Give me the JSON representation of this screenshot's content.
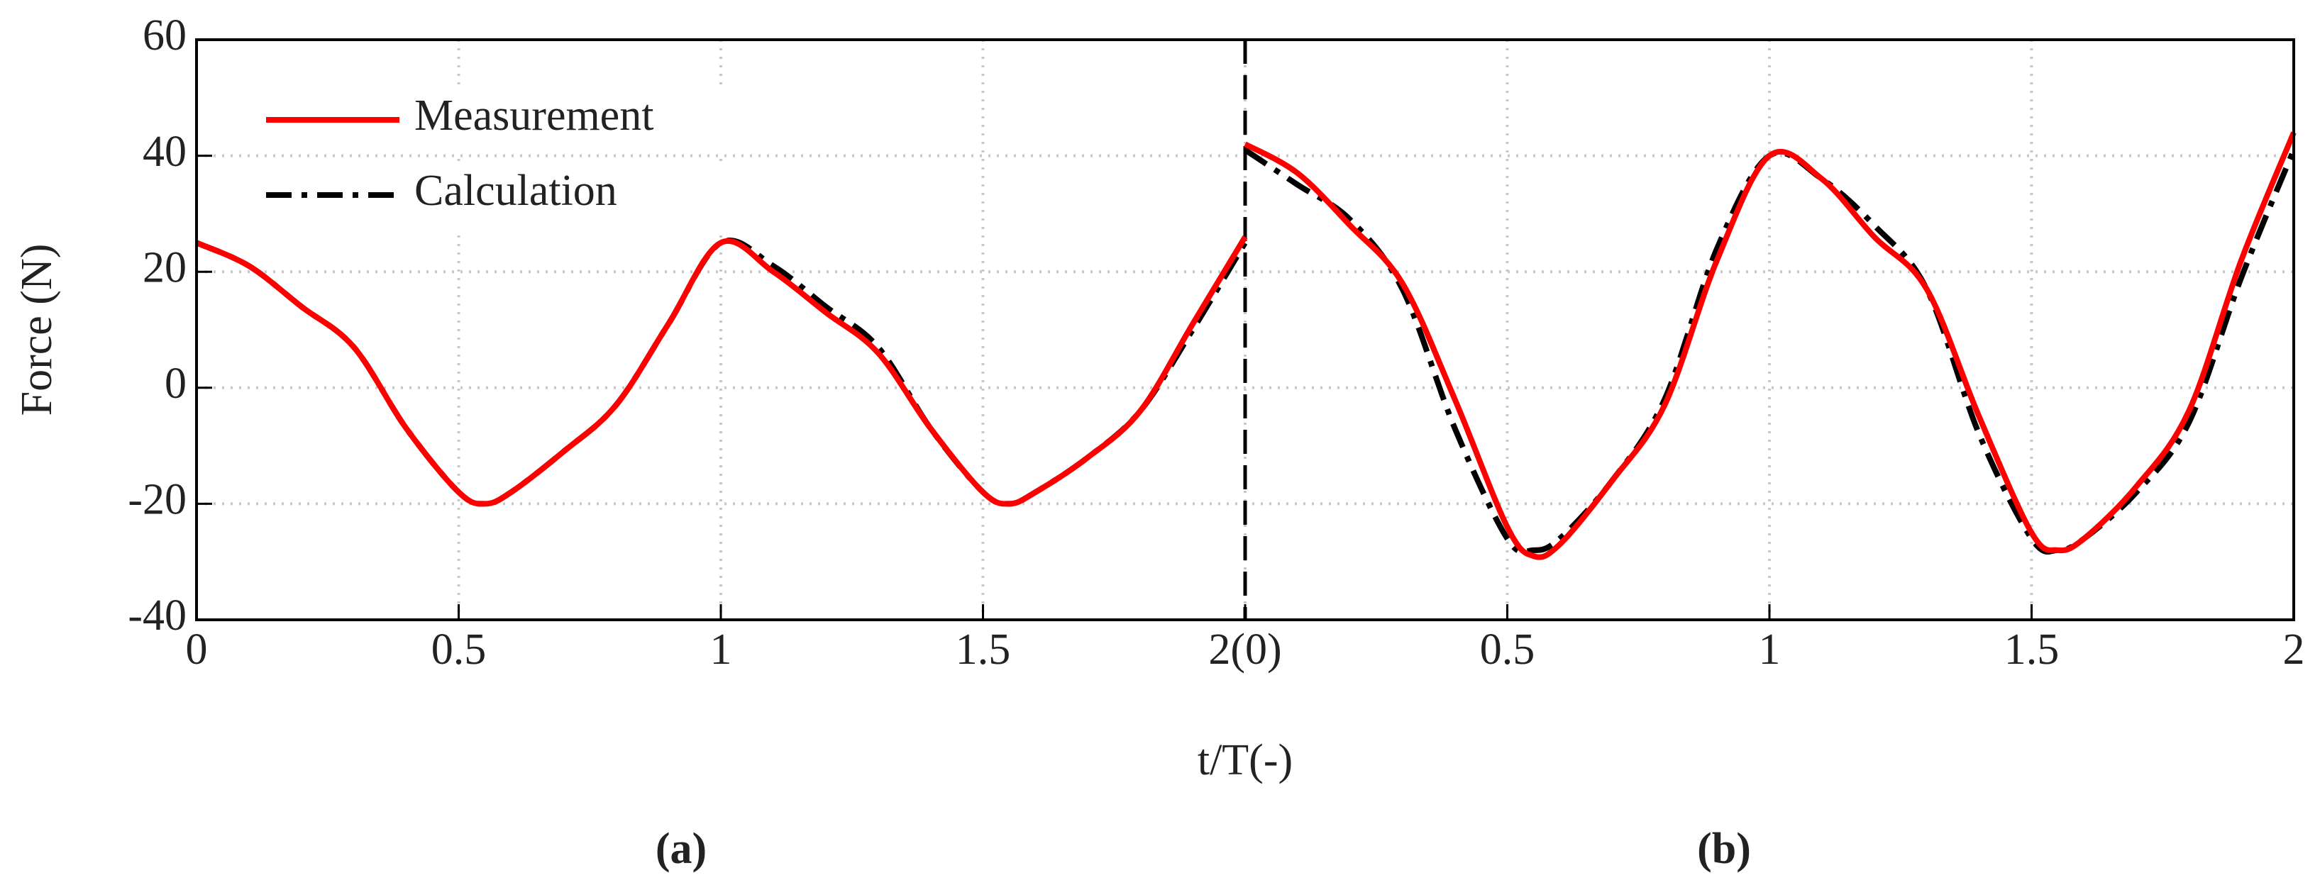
{
  "chart_data": {
    "type": "line",
    "ylabel": "Force (N)",
    "xlabel": "t/T(-)",
    "panel_labels": [
      "(a)",
      "(b)"
    ],
    "x": [
      0,
      0.1,
      0.2,
      0.3,
      0.4,
      0.5,
      0.55,
      0.6,
      0.7,
      0.8,
      0.9,
      1,
      1.1,
      1.2,
      1.3,
      1.4,
      1.5,
      1.55,
      1.6,
      1.7,
      1.8,
      1.9,
      2,
      2,
      2,
      2.1,
      2.2,
      2.3,
      2.4,
      2.5,
      2.55,
      2.6,
      2.7,
      2.8,
      2.9,
      3,
      3.1,
      3.2,
      3.3,
      3.4,
      3.5,
      3.55,
      3.6,
      3.7,
      3.8,
      3.9,
      4
    ],
    "series": [
      {
        "name": "Measurement",
        "color": "#ff0000",
        "dash": "solid",
        "values": [
          25,
          21,
          14,
          7,
          -7,
          -18,
          -20,
          -18,
          -11,
          -3,
          11,
          25,
          20,
          13,
          6,
          -7,
          -18,
          -20,
          -18,
          -12,
          -4,
          11,
          26,
          null,
          42,
          37,
          28,
          18,
          -2,
          -24,
          -29,
          -27,
          -16,
          -3,
          22,
          40,
          36,
          26,
          17,
          -5,
          -25,
          -28,
          -26,
          -17,
          -4,
          22,
          44
        ]
      },
      {
        "name": "Calculation",
        "color": "#000000",
        "dash": "dashdot",
        "values": [
          25,
          21,
          14,
          7,
          -7,
          -18,
          -20,
          -18,
          -11,
          -3,
          11,
          25,
          21,
          14,
          7,
          -7,
          -18,
          -20,
          -18,
          -12,
          -4,
          10,
          25,
          null,
          41,
          35,
          29,
          17,
          -7,
          -26,
          -28,
          -26,
          -16,
          -2,
          24,
          40,
          36,
          28,
          17,
          -8,
          -26,
          -28,
          -26,
          -18,
          -6,
          19,
          41
        ]
      }
    ],
    "xlim": [
      0,
      4
    ],
    "xticks": [
      0,
      0.5,
      1,
      1.5,
      {
        "value": 2,
        "label": "2(0)"
      },
      {
        "value": 2.5,
        "label": "0.5"
      },
      {
        "value": 3,
        "label": "1"
      },
      {
        "value": 3.5,
        "label": "1.5"
      },
      {
        "value": 4,
        "label": "2"
      }
    ],
    "ylim": [
      -40,
      60
    ],
    "yticks": [
      -40,
      -20,
      0,
      20,
      40,
      60
    ],
    "grid": true,
    "divider": true,
    "legend": "upper left"
  }
}
